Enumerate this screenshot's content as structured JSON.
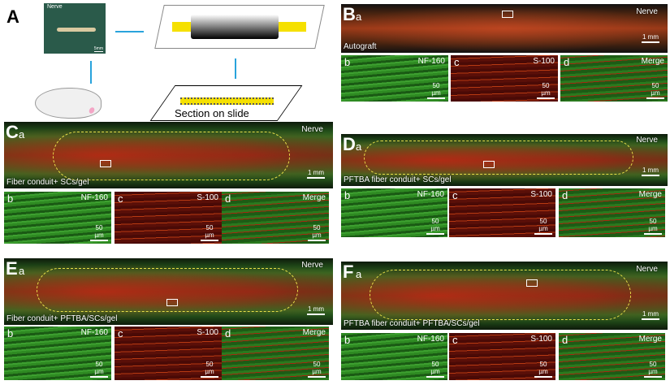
{
  "panel_a": {
    "letter": "A",
    "photo_label": "Nerve",
    "photo_scale": "5mm",
    "slide_label": "Section on slide",
    "colors": {
      "arrow": "#29a3dc",
      "nerve": "#f5e000"
    }
  },
  "panels": [
    {
      "letter": "B",
      "sub": "a",
      "nerve": "Nerve",
      "caption": "Autograft",
      "scale": "1 mm",
      "type": "autograft",
      "subs": [
        {
          "letter": "b",
          "stain": "NF-160",
          "scale": "50 µm"
        },
        {
          "letter": "c",
          "stain": "S-100",
          "scale": "50 µm"
        },
        {
          "letter": "d",
          "stain": "Merge",
          "scale": "50 µm"
        }
      ]
    },
    {
      "letter": "C",
      "sub": "a",
      "nerve": "Nerve",
      "caption": "Fiber conduit+ SCs/gel",
      "scale": "1 mm",
      "type": "conduit",
      "subs": [
        {
          "letter": "b",
          "stain": "NF-160",
          "scale": "50 µm"
        },
        {
          "letter": "c",
          "stain": "S-100",
          "scale": "50 µm"
        },
        {
          "letter": "d",
          "stain": "Merge",
          "scale": "50 µm"
        }
      ]
    },
    {
      "letter": "D",
      "sub": "a",
      "nerve": "Nerve",
      "caption": "PFTBA fiber conduit+ SCs/gel",
      "scale": "1 mm",
      "type": "conduit",
      "subs": [
        {
          "letter": "b",
          "stain": "NF-160",
          "scale": "50 µm"
        },
        {
          "letter": "c",
          "stain": "S-100",
          "scale": "50 µm"
        },
        {
          "letter": "d",
          "stain": "Merge",
          "scale": "50 µm"
        }
      ]
    },
    {
      "letter": "E",
      "sub": "a",
      "nerve": "Nerve",
      "caption": "Fiber conduit+ PFTBA/SCs/gel",
      "scale": "1 mm",
      "type": "conduit",
      "subs": [
        {
          "letter": "b",
          "stain": "NF-160",
          "scale": "50 µm"
        },
        {
          "letter": "c",
          "stain": "S-100",
          "scale": "50 µm"
        },
        {
          "letter": "d",
          "stain": "Merge",
          "scale": "50 µm"
        }
      ]
    },
    {
      "letter": "F",
      "sub": "a",
      "nerve": "Nerve",
      "caption": "PFTBA fiber conduit+ PFTBA/SCs/gel",
      "scale": "1 mm",
      "type": "conduit",
      "subs": [
        {
          "letter": "b",
          "stain": "NF-160",
          "scale": "50 µm"
        },
        {
          "letter": "c",
          "stain": "S-100",
          "scale": "50 µm"
        },
        {
          "letter": "d",
          "stain": "Merge",
          "scale": "50 µm"
        }
      ]
    }
  ]
}
